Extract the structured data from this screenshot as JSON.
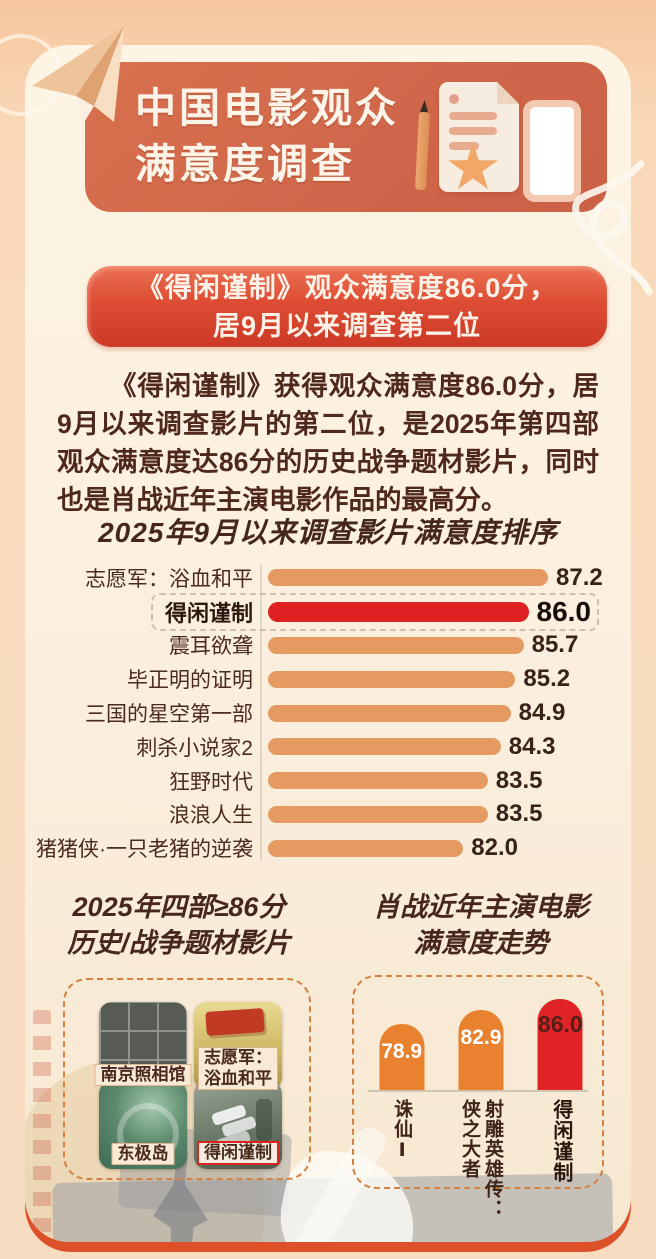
{
  "header": {
    "title_line1": "中国电影观众",
    "title_line2": "满意度调查"
  },
  "banner": {
    "line1": "《得闲谨制》观众满意度86.0分，",
    "line2": "居9月以来调查第二位"
  },
  "intro": {
    "text": "《得闲谨制》获得观众满意度86.0分，居9月以来调查影片的第二位，是2025年第四部观众满意度达86分的历史战争题材影片，同时也是肖战近年主演电影作品的最高分。"
  },
  "posters_section": {
    "title_line1": "2025年四部≥86分",
    "title_line2": "历史/战争题材影片",
    "items": [
      {
        "label_lines": [
          "南京照相馆"
        ],
        "art": "nanjing-photo-studio-poster",
        "highlight": false
      },
      {
        "label_lines": [
          "志愿军：",
          "浴血和平"
        ],
        "art": "volunteers-poster",
        "highlight": false
      },
      {
        "label_lines": [
          "东极岛"
        ],
        "art": "dongji-island-poster",
        "highlight": false
      },
      {
        "label_lines": [
          "得闲谨制"
        ],
        "art": "dexian-jinzhi-poster",
        "highlight": true
      }
    ]
  },
  "trend_section": {
    "title_line1": "肖战近年主演电影",
    "title_line2": "满意度走势"
  },
  "chart_data": [
    {
      "type": "bar",
      "orientation": "horizontal",
      "title": "2025年9月以来调查影片满意度排序",
      "categories": [
        "志愿军：浴血和平",
        "得闲谨制",
        "震耳欲聋",
        "毕正明的证明",
        "三国的星空第一部",
        "刺杀小说家2",
        "狂野时代",
        "浪浪人生",
        "猪猪侠·一只老猪的逆袭"
      ],
      "values": [
        87.2,
        86.0,
        85.7,
        85.2,
        84.9,
        84.3,
        83.5,
        83.5,
        82.0
      ],
      "highlight_index": 1,
      "bar_color": "#e59a62",
      "highlight_color": "#de2121",
      "value_labels_shown": true,
      "axis_hidden": true,
      "xlim": [
        70,
        88
      ],
      "grid": false,
      "legend": "none"
    },
    {
      "type": "bar",
      "orientation": "vertical",
      "title": "肖战近年主演电影满意度走势",
      "categories": [
        "诛仙Ⅰ",
        "射雕英雄传：侠之大者",
        "得闲谨制"
      ],
      "values": [
        78.9,
        82.9,
        86.0
      ],
      "highlight_index": 2,
      "bar_color": "#e8822f",
      "highlight_color": "#e02426",
      "value_labels_shown": true,
      "ylim": [
        60,
        88
      ],
      "grid": false,
      "legend": "none"
    }
  ],
  "icons": [
    "paper-plane-icon",
    "circle-outline-icon",
    "scribble-line-icon",
    "pencil-icon",
    "survey-sheet-icon",
    "star-icon",
    "phone-icon"
  ],
  "colors": {
    "page_bg": "#f8d2ac",
    "card_bg": "#fbf1dd",
    "card_rim": "#dc5127",
    "header_box": "#d2694a",
    "banner_top": "#ea7053",
    "banner_bottom": "#cc3a27",
    "text_dark": "#4e281b",
    "dashed_box_border": "#d6813f"
  }
}
